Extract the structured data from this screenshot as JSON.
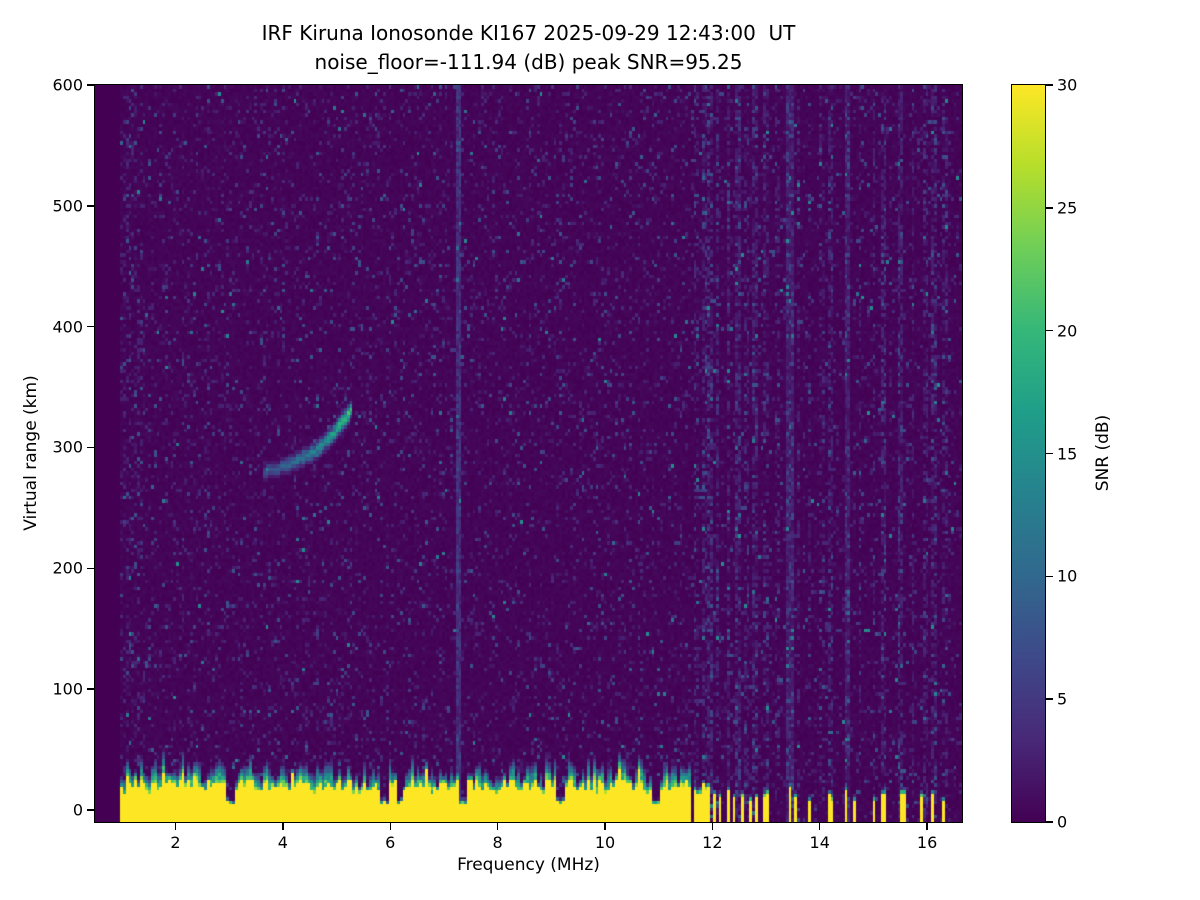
{
  "chart_data": {
    "type": "heatmap",
    "title_line1": "IRF Kiruna Ionosonde KI167 2025-09-29 12:43:00  UT",
    "title_line2": "noise_floor=-111.94 (dB) peak SNR=95.25",
    "xlabel": "Frequency (MHz)",
    "ylabel": "Virtual range (km)",
    "xlim": [
      0.5,
      16.65
    ],
    "ylim": [
      -10,
      600
    ],
    "x_ticks": [
      2,
      4,
      6,
      8,
      10,
      12,
      14,
      16
    ],
    "y_ticks": [
      0,
      100,
      200,
      300,
      400,
      500,
      600
    ],
    "data_freq_start": 0.95,
    "colorbar": {
      "label": "SNR (dB)",
      "ticks": [
        0,
        5,
        10,
        15,
        20,
        25,
        30
      ],
      "range": [
        0,
        30
      ],
      "colormap": "viridis",
      "anchors": [
        "#440154",
        "#482878",
        "#3e4989",
        "#31688e",
        "#26828e",
        "#1f9e89",
        "#35b779",
        "#6ece58",
        "#b5de2b",
        "#fde725"
      ]
    },
    "features": {
      "ground_clutter": {
        "freq_range": [
          0.95,
          11.62
        ],
        "solid_height_km": 20,
        "fringe_height_km": 18,
        "snr": 30,
        "gap_freqs": [
          3.03,
          5.88,
          6.18,
          7.34,
          9.16,
          10.95
        ]
      },
      "sparse_clutter_columns": [
        {
          "freq": 11.68,
          "height_km": 18
        },
        {
          "freq": 11.76,
          "height_km": 13
        },
        {
          "freq": 11.85,
          "height_km": 20
        },
        {
          "freq": 11.95,
          "height_km": 16
        },
        {
          "freq": 12.05,
          "height_km": 12
        },
        {
          "freq": 12.16,
          "height_km": 9
        },
        {
          "freq": 12.3,
          "height_km": 14
        },
        {
          "freq": 12.42,
          "height_km": 9
        },
        {
          "freq": 12.55,
          "height_km": 12
        },
        {
          "freq": 12.7,
          "height_km": 8
        },
        {
          "freq": 12.82,
          "height_km": 10
        },
        {
          "freq": 13.0,
          "height_km": 12
        },
        {
          "freq": 13.45,
          "height_km": 16
        },
        {
          "freq": 13.56,
          "height_km": 9
        },
        {
          "freq": 13.8,
          "height_km": 6
        },
        {
          "freq": 14.2,
          "height_km": 11
        },
        {
          "freq": 14.5,
          "height_km": 14
        },
        {
          "freq": 14.63,
          "height_km": 8
        },
        {
          "freq": 15.0,
          "height_km": 7
        },
        {
          "freq": 15.2,
          "height_km": 12
        },
        {
          "freq": 15.55,
          "height_km": 12
        },
        {
          "freq": 15.9,
          "height_km": 10
        },
        {
          "freq": 16.1,
          "height_km": 12
        },
        {
          "freq": 16.3,
          "height_km": 8
        }
      ],
      "echo_trace": {
        "points": [
          [
            3.65,
            280
          ],
          [
            3.85,
            282
          ],
          [
            4.1,
            286
          ],
          [
            4.35,
            291
          ],
          [
            4.6,
            297
          ],
          [
            4.8,
            305
          ],
          [
            5.0,
            314
          ],
          [
            5.15,
            323
          ],
          [
            5.27,
            332
          ]
        ],
        "snr": 16
      },
      "interference_stripes": [
        {
          "freq": 1.15,
          "width": 0.25,
          "strength": 2.0,
          "continuous": 0
        },
        {
          "freq": 2.6,
          "width": 0.04,
          "strength": 1.8,
          "continuous": 0
        },
        {
          "freq": 7.27,
          "width": 0.05,
          "strength": 2.5,
          "continuous": 4
        },
        {
          "freq": 11.7,
          "width": 0.04,
          "strength": 4,
          "continuous": 0
        },
        {
          "freq": 11.85,
          "width": 0.04,
          "strength": 5,
          "continuous": 0
        },
        {
          "freq": 11.97,
          "width": 0.04,
          "strength": 6,
          "continuous": 0
        },
        {
          "freq": 12.1,
          "width": 0.04,
          "strength": 5,
          "continuous": 0
        },
        {
          "freq": 12.3,
          "width": 0.05,
          "strength": 6,
          "continuous": 0
        },
        {
          "freq": 12.5,
          "width": 0.05,
          "strength": 7,
          "continuous": 0
        },
        {
          "freq": 12.63,
          "width": 0.04,
          "strength": 4,
          "continuous": 0
        },
        {
          "freq": 12.78,
          "width": 0.05,
          "strength": 6,
          "continuous": 0
        },
        {
          "freq": 13.0,
          "width": 0.05,
          "strength": 5,
          "continuous": 0
        },
        {
          "freq": 13.2,
          "width": 0.04,
          "strength": 3,
          "continuous": 0
        },
        {
          "freq": 13.45,
          "width": 0.06,
          "strength": 9,
          "continuous": 0
        },
        {
          "freq": 13.6,
          "width": 0.04,
          "strength": 4,
          "continuous": 0
        },
        {
          "freq": 13.82,
          "width": 0.04,
          "strength": 3,
          "continuous": 0
        },
        {
          "freq": 14.05,
          "width": 0.04,
          "strength": 3,
          "continuous": 0
        },
        {
          "freq": 14.2,
          "width": 0.05,
          "strength": 5,
          "continuous": 0
        },
        {
          "freq": 14.5,
          "width": 0.06,
          "strength": 9,
          "continuous": 0
        },
        {
          "freq": 14.75,
          "width": 0.04,
          "strength": 3,
          "continuous": 0
        },
        {
          "freq": 15.0,
          "width": 0.04,
          "strength": 4,
          "continuous": 0
        },
        {
          "freq": 15.2,
          "width": 0.05,
          "strength": 6,
          "continuous": 0
        },
        {
          "freq": 15.5,
          "width": 0.05,
          "strength": 7,
          "continuous": 0
        },
        {
          "freq": 15.75,
          "width": 0.04,
          "strength": 4,
          "continuous": 0
        },
        {
          "freq": 15.95,
          "width": 0.05,
          "strength": 5,
          "continuous": 0
        },
        {
          "freq": 16.15,
          "width": 0.05,
          "strength": 6,
          "continuous": 0
        },
        {
          "freq": 16.35,
          "width": 0.04,
          "strength": 4,
          "continuous": 0
        }
      ]
    }
  }
}
